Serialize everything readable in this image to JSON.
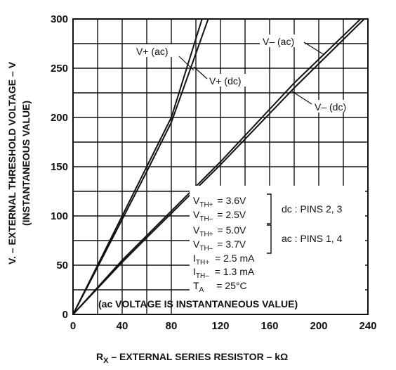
{
  "chart_data": {
    "type": "line",
    "xlabel": "R",
    "xlabel_sub": "X",
    "xlabel_rest": " – EXTERNAL SERIES RESISTOR – kΩ",
    "ylabel_line1": "V. – EXTERNAL THRESHOLD VOLTAGE – V",
    "ylabel_line2": "(INSTANTANEOUS VALUE)",
    "xlim": [
      0,
      240
    ],
    "ylim": [
      0,
      300
    ],
    "x_ticks": [
      0,
      40,
      80,
      120,
      160,
      200,
      240
    ],
    "y_ticks": [
      0,
      50,
      100,
      150,
      200,
      250,
      300
    ],
    "grid": true,
    "series": [
      {
        "name": "V+ (ac)",
        "x": [
          0,
          20,
          60,
          80,
          105
        ],
        "y": [
          0,
          50,
          150,
          200,
          300
        ]
      },
      {
        "name": "V+ (dc)",
        "x": [
          0,
          20,
          60,
          80,
          110
        ],
        "y": [
          0,
          48,
          145,
          195,
          300
        ]
      },
      {
        "name": "V– (ac)",
        "x": [
          0,
          40,
          60,
          120,
          180,
          234
        ],
        "y": [
          0,
          55,
          80,
          155,
          235,
          300
        ]
      },
      {
        "name": "V– (dc)",
        "x": [
          0,
          40,
          60,
          120,
          180,
          237
        ],
        "y": [
          0,
          53,
          78,
          152,
          230,
          300
        ]
      }
    ],
    "labels": {
      "vplus_ac": "V+ (ac)",
      "vplus_dc": "V+ (dc)",
      "vminus_ac": "V– (ac)",
      "vminus_dc": "V– (dc)"
    },
    "conditions": {
      "dc_vth_plus": "V",
      "dc_vth_plus_sub": "TH+",
      "dc_vth_plus_val": "= 3.6V",
      "dc_vth_minus": "V",
      "dc_vth_minus_sub": "TH–",
      "dc_vth_minus_val": "= 2.5V",
      "ac_vth_plus": "V",
      "ac_vth_plus_sub": "TH+",
      "ac_vth_plus_val": "= 5.0V",
      "ac_vth_minus": "V",
      "ac_vth_minus_sub": "TH–",
      "ac_vth_minus_val": "= 3.7V",
      "ith_plus": "I",
      "ith_plus_sub": "TH+",
      "ith_plus_val": "= 2.5 mA",
      "ith_minus": "I",
      "ith_minus_sub": "TH–",
      "ith_minus_val": "= 1.3 mA",
      "ta": "T",
      "ta_sub": "A",
      "ta_val": "= 25°C",
      "dc_pins": "dc : PINS 2, 3",
      "ac_pins": "ac : PINS 1, 4",
      "note": "(ac VOLTAGE IS INSTANTANEOUS VALUE)"
    }
  }
}
